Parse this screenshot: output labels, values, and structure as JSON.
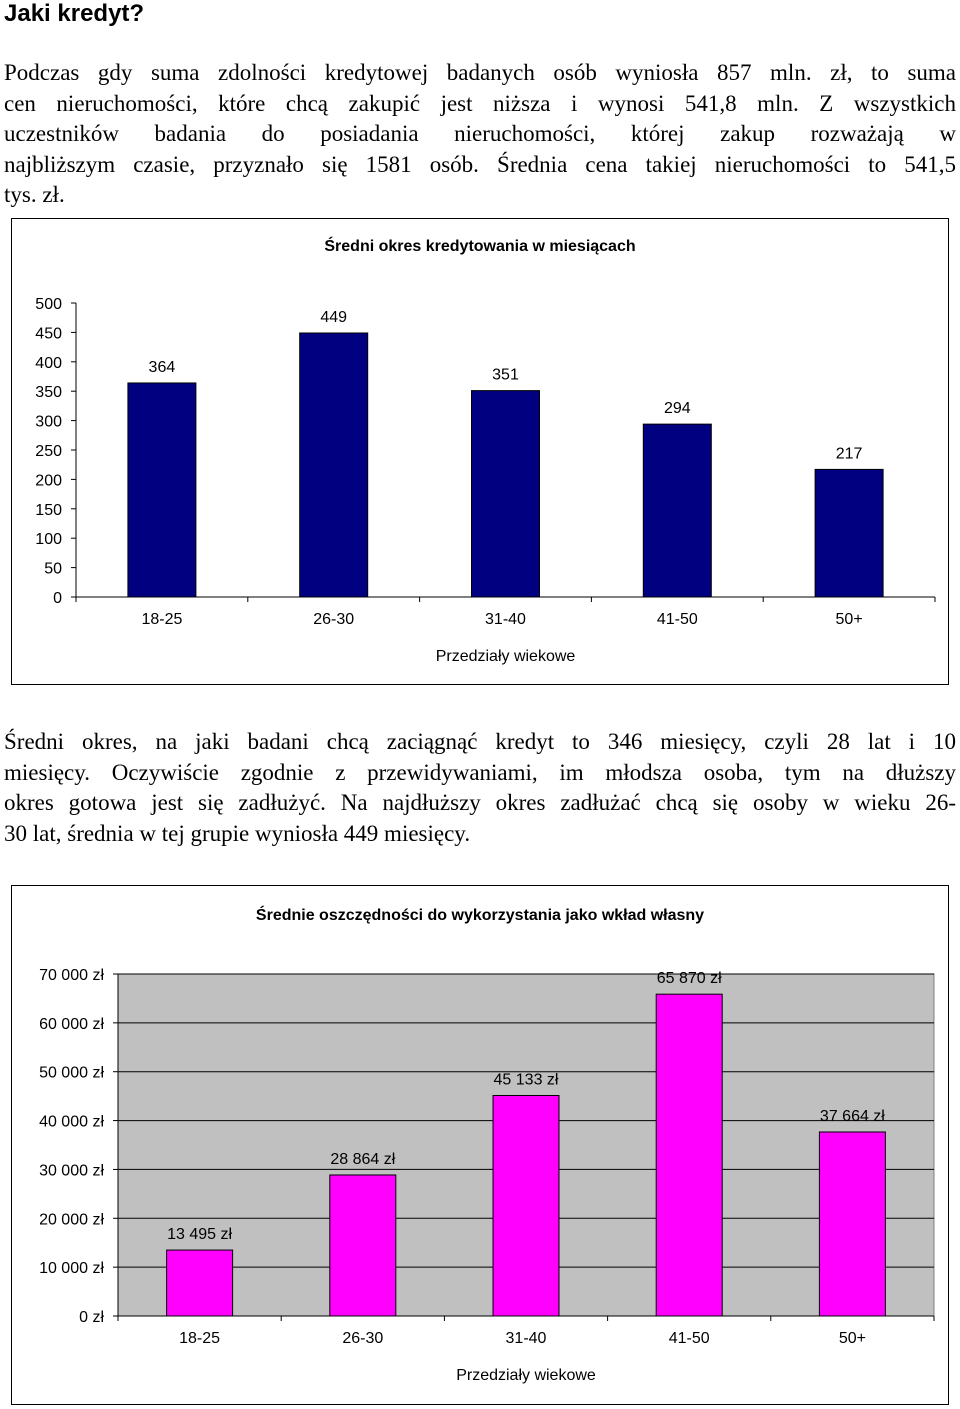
{
  "heading": "Jaki kredyt?",
  "paragraph1": [
    "Podczas gdy suma zdolności kredytowej badanych osób wyniosła 857 mln. zł, to suma",
    "cen nieruchomości, które chcą zakupić jest niższa i wynosi 541,8 mln. Z wszystkich",
    "uczestników badania do posiadania nieruchomości, której zakup rozważają w",
    "najbliższym czasie, przyznało się 1581 osób. Średnia cena takiej nieruchomości to 541,5",
    "tys. zł."
  ],
  "paragraph2": [
    "Średni okres, na jaki badani chcą zaciągnąć kredyt to 346 miesięcy, czyli 28 lat i 10",
    "miesięcy. Oczywiście zgodnie z przewidywaniami, im młodsza osoba, tym na dłuższy",
    "okres gotowa jest się zadłużyć. Na najdłuższy okres zadłużać chcą się osoby w wieku 26-",
    "30 lat, średnia w tej grupie wyniosła 449 miesięcy."
  ],
  "chart_data": [
    {
      "type": "bar",
      "title": "Średni okres kredytowania w miesiącach",
      "xlabel": "Przedziały wiekowe",
      "ylabel": "",
      "categories": [
        "18-25",
        "26-30",
        "31-40",
        "41-50",
        "50+"
      ],
      "values": [
        364,
        449,
        351,
        294,
        217
      ],
      "value_labels": [
        "364",
        "449",
        "351",
        "294",
        "217"
      ],
      "yticks": [
        "0",
        "50",
        "100",
        "150",
        "200",
        "250",
        "300",
        "350",
        "400",
        "450",
        "500"
      ],
      "ylim": [
        0,
        500
      ],
      "grid": false,
      "bar_color": "#000080",
      "plot_background": "#ffffff"
    },
    {
      "type": "bar",
      "title": "Średnie oszczędności do wykorzystania jako wkład własny",
      "xlabel": "Przedziały wiekowe",
      "ylabel": "",
      "categories": [
        "18-25",
        "26-30",
        "31-40",
        "41-50",
        "50+"
      ],
      "values": [
        13495,
        28864,
        45133,
        65870,
        37664
      ],
      "value_labels": [
        "13 495 zł",
        "28 864 zł",
        "45 133 zł",
        "65 870 zł",
        "37 664 zł"
      ],
      "yticks": [
        "0 zł",
        "10 000 zł",
        "20 000 zł",
        "30 000 zł",
        "40 000 zł",
        "50 000 zł",
        "60 000 zł",
        "70 000 zł"
      ],
      "ylim": [
        0,
        70000
      ],
      "grid": true,
      "bar_color": "#ff00ff",
      "plot_background": "#c0c0c0"
    }
  ]
}
